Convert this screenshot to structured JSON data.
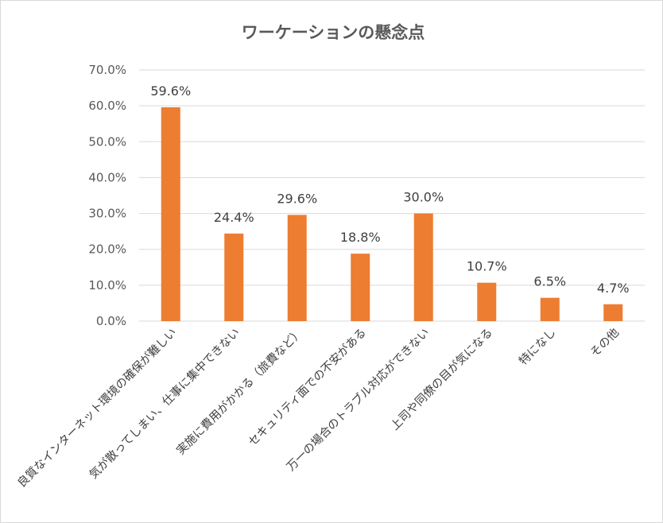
{
  "chart_data": {
    "type": "bar",
    "title": "ワーケーションの懸念点",
    "xlabel": "",
    "ylabel": "",
    "ylim": [
      0,
      70
    ],
    "yticks": [
      "0.0%",
      "10.0%",
      "20.0%",
      "30.0%",
      "40.0%",
      "50.0%",
      "60.0%",
      "70.0%"
    ],
    "grid": true,
    "legend": "none",
    "bar_color": "#ed7d31",
    "categories": [
      "良質なインターネット環境の確保が難しい",
      "気が散ってしまい、仕事に集中できない",
      "実施に費用がかかる（旅費など）",
      "セキュリティ面での不安がある",
      "万一の場合のトラブル対応ができない",
      "上司や同僚の目が気になる",
      "特になし",
      "その他"
    ],
    "values": [
      59.6,
      24.4,
      29.6,
      18.8,
      30.0,
      10.7,
      6.5,
      4.7
    ],
    "data_labels": [
      "59.6%",
      "24.4%",
      "29.6%",
      "18.8%",
      "30.0%",
      "10.7%",
      "6.5%",
      "4.7%"
    ]
  }
}
